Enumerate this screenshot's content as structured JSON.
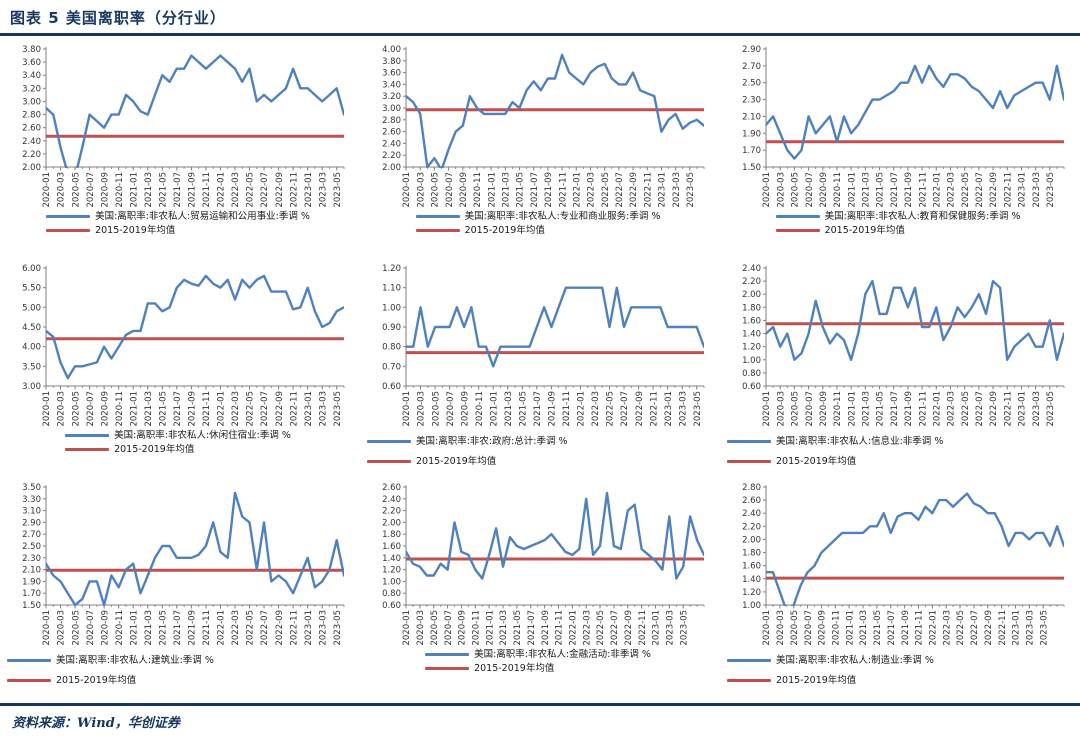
{
  "page": {
    "title": "图表 5  美国离职率（分行业）",
    "source": "资料来源：Wind，华创证券"
  },
  "colors": {
    "navy": "#17375E",
    "series_blue": "#4F81BD",
    "avg_red": "#C0504D",
    "axis": "#808080",
    "tick_text": "#333333"
  },
  "chart_data": [
    {
      "type": "line",
      "series_label": "美国:离职率:非农私人:贸易运输和公用事业:季调 %",
      "avg_label": "2015-2019年均值",
      "avg_value": 2.47,
      "y_min": 2.0,
      "y_max": 3.8,
      "y_ticks": [
        "3.80",
        "3.60",
        "3.40",
        "3.20",
        "3.00",
        "2.80",
        "2.60",
        "2.40",
        "2.20",
        "2.00"
      ],
      "x_ticks": [
        "2020-01",
        "2020-03",
        "2020-05",
        "2020-07",
        "2020-09",
        "2020-11",
        "2021-01",
        "2021-03",
        "2021-05",
        "2021-07",
        "2021-09",
        "2021-11",
        "2022-01",
        "2022-03",
        "2022-05",
        "2022-07",
        "2022-09",
        "2022-11",
        "2023-01",
        "2023-03",
        "2023-05"
      ],
      "legend_layout": "stacked",
      "values": [
        2.9,
        2.8,
        2.3,
        1.9,
        1.85,
        2.3,
        2.8,
        2.7,
        2.6,
        2.8,
        2.8,
        3.1,
        3.0,
        2.85,
        2.8,
        3.1,
        3.4,
        3.3,
        3.5,
        3.5,
        3.7,
        3.6,
        3.5,
        3.6,
        3.7,
        3.6,
        3.5,
        3.3,
        3.5,
        3.0,
        3.1,
        3.0,
        3.1,
        3.2,
        3.5,
        3.2,
        3.2,
        3.1,
        3.0,
        3.1,
        3.2,
        2.8
      ]
    },
    {
      "type": "line",
      "series_label": "美国:离职率:非农私人:专业和商业服务:季调 %",
      "avg_label": "2015-2019年均值",
      "avg_value": 2.97,
      "y_min": 2.0,
      "y_max": 4.0,
      "y_ticks": [
        "4.00",
        "3.80",
        "3.60",
        "3.40",
        "3.20",
        "3.00",
        "2.80",
        "2.60",
        "2.40",
        "2.20",
        "2.00"
      ],
      "x_ticks": [
        "2020-01",
        "2020-03",
        "2020-05",
        "2020-07",
        "2020-09",
        "2020-11",
        "2021-01",
        "2021-03",
        "2021-05",
        "2021-07",
        "2021-09",
        "2021-11",
        "2022-01",
        "2022-03",
        "2022-05",
        "2022-07",
        "2022-09",
        "2022-11",
        "2023-01",
        "2023-03",
        "2023-05"
      ],
      "legend_layout": "stacked",
      "values": [
        3.2,
        3.1,
        2.9,
        2.0,
        2.15,
        1.95,
        2.3,
        2.6,
        2.7,
        3.2,
        3.0,
        2.9,
        2.9,
        2.9,
        2.9,
        3.1,
        3.0,
        3.3,
        3.45,
        3.3,
        3.5,
        3.5,
        3.9,
        3.6,
        3.5,
        3.4,
        3.6,
        3.7,
        3.75,
        3.5,
        3.4,
        3.4,
        3.6,
        3.3,
        3.25,
        3.2,
        2.6,
        2.8,
        2.9,
        2.65,
        2.75,
        2.8,
        2.7
      ]
    },
    {
      "type": "line",
      "series_label": "美国:离职率:非农私人:教育和保健服务:季调 %",
      "avg_label": "2015-2019年均值",
      "avg_value": 1.8,
      "y_min": 1.5,
      "y_max": 2.9,
      "y_ticks": [
        "2.90",
        "2.70",
        "2.50",
        "2.30",
        "2.10",
        "1.90",
        "1.70",
        "1.50"
      ],
      "x_ticks": [
        "2020-01",
        "2020-03",
        "2020-05",
        "2020-07",
        "2020-09",
        "2020-11",
        "2021-01",
        "2021-03",
        "2021-05",
        "2021-07",
        "2021-09",
        "2021-11",
        "2022-01",
        "2022-03",
        "2022-05",
        "2022-07",
        "2022-09",
        "2022-11",
        "2023-01",
        "2023-03",
        "2023-05"
      ],
      "legend_layout": "stacked",
      "values": [
        2.0,
        2.1,
        1.9,
        1.7,
        1.6,
        1.7,
        2.1,
        1.9,
        2.0,
        2.1,
        1.8,
        2.1,
        1.9,
        2.0,
        2.15,
        2.3,
        2.3,
        2.35,
        2.4,
        2.5,
        2.5,
        2.7,
        2.5,
        2.7,
        2.55,
        2.45,
        2.6,
        2.6,
        2.55,
        2.45,
        2.4,
        2.3,
        2.2,
        2.4,
        2.2,
        2.35,
        2.4,
        2.45,
        2.5,
        2.5,
        2.3,
        2.7,
        2.3
      ]
    },
    {
      "type": "line",
      "series_label": "美国:离职率:非农私人:休闲住宿业:季调 %",
      "avg_label": "2015-2019年均值",
      "avg_value": 4.2,
      "y_min": 3.0,
      "y_max": 6.0,
      "y_ticks": [
        "6.00",
        "5.50",
        "5.00",
        "4.50",
        "4.00",
        "3.50",
        "3.00"
      ],
      "x_ticks": [
        "2020-01",
        "2020-03",
        "2020-05",
        "2020-07",
        "2020-09",
        "2020-11",
        "2021-01",
        "2021-03",
        "2021-05",
        "2021-07",
        "2021-09",
        "2021-11",
        "2022-01",
        "2022-03",
        "2022-05",
        "2022-07",
        "2022-09",
        "2022-11",
        "2023-01",
        "2023-03",
        "2023-05"
      ],
      "legend_layout": "stacked",
      "values": [
        4.4,
        4.25,
        3.6,
        3.2,
        3.5,
        3.5,
        3.55,
        3.6,
        4.0,
        3.7,
        4.0,
        4.3,
        4.4,
        4.4,
        5.1,
        5.1,
        4.9,
        5.0,
        5.5,
        5.7,
        5.6,
        5.55,
        5.8,
        5.6,
        5.5,
        5.7,
        5.2,
        5.7,
        5.5,
        5.7,
        5.8,
        5.4,
        5.4,
        5.4,
        4.95,
        5.0,
        5.5,
        4.9,
        4.5,
        4.6,
        4.9,
        5.0
      ]
    },
    {
      "type": "line",
      "series_label": "美国:离职率:非农:政府:总计:季调 %",
      "avg_label": "2015-2019年均值",
      "avg_value": 0.77,
      "y_min": 0.6,
      "y_max": 1.2,
      "y_ticks": [
        "1.20",
        "1.10",
        "1.00",
        "0.90",
        "0.80",
        "0.70",
        "0.60"
      ],
      "x_ticks": [
        "2020-01",
        "2020-03",
        "2020-05",
        "2020-07",
        "2020-09",
        "2020-11",
        "2021-01",
        "2021-03",
        "2021-05",
        "2021-07",
        "2021-09",
        "2021-11",
        "2022-01",
        "2022-03",
        "2022-05",
        "2022-07",
        "2022-09",
        "2022-11",
        "2023-01",
        "2023-03",
        "2023-05"
      ],
      "legend_layout": "inline",
      "values": [
        0.8,
        0.8,
        1.0,
        0.8,
        0.9,
        0.9,
        0.9,
        1.0,
        0.9,
        1.0,
        0.8,
        0.8,
        0.7,
        0.8,
        0.8,
        0.8,
        0.8,
        0.8,
        0.9,
        1.0,
        0.9,
        1.0,
        1.1,
        1.1,
        1.1,
        1.1,
        1.1,
        1.1,
        0.9,
        1.1,
        0.9,
        1.0,
        1.0,
        1.0,
        1.0,
        1.0,
        0.9,
        0.9,
        0.9,
        0.9,
        0.9,
        0.8
      ]
    },
    {
      "type": "line",
      "series_label": "美国:离职率:非农私人:信息业:非季调 %",
      "avg_label": "2015-2019年均值",
      "avg_value": 1.55,
      "y_min": 0.6,
      "y_max": 2.4,
      "y_ticks": [
        "2.40",
        "2.20",
        "2.00",
        "1.80",
        "1.60",
        "1.40",
        "1.20",
        "1.00",
        "0.80",
        "0.60"
      ],
      "x_ticks": [
        "2020-01",
        "2020-03",
        "2020-05",
        "2020-07",
        "2020-09",
        "2020-11",
        "2021-01",
        "2021-03",
        "2021-05",
        "2021-07",
        "2021-09",
        "2021-11",
        "2022-01",
        "2022-03",
        "2022-05",
        "2022-07",
        "2022-09",
        "2022-11",
        "2023-01",
        "2023-03",
        "2023-05"
      ],
      "legend_layout": "inline",
      "values": [
        1.4,
        1.5,
        1.2,
        1.4,
        1.0,
        1.1,
        1.4,
        1.9,
        1.5,
        1.25,
        1.4,
        1.3,
        1.0,
        1.4,
        2.0,
        2.2,
        1.7,
        1.7,
        2.1,
        2.1,
        1.8,
        2.1,
        1.5,
        1.5,
        1.8,
        1.3,
        1.5,
        1.8,
        1.65,
        1.8,
        2.0,
        1.7,
        2.2,
        2.1,
        1.0,
        1.2,
        1.3,
        1.4,
        1.2,
        1.2,
        1.6,
        1.0,
        1.4
      ]
    },
    {
      "type": "line",
      "series_label": "美国:离职率:非农私人:建筑业:季调 %",
      "avg_label": "2015-2019年均值",
      "avg_value": 2.09,
      "y_min": 1.5,
      "y_max": 3.5,
      "y_ticks": [
        "3.50",
        "3.30",
        "3.10",
        "2.90",
        "2.70",
        "2.50",
        "2.30",
        "2.10",
        "1.90",
        "1.70",
        "1.50"
      ],
      "x_ticks": [
        "2020-01",
        "2020-03",
        "2020-05",
        "2020-07",
        "2020-09",
        "2020-11",
        "2021-01",
        "2021-03",
        "2021-05",
        "2021-07",
        "2021-09",
        "2021-11",
        "2022-01",
        "2022-03",
        "2022-05",
        "2022-07",
        "2022-09",
        "2022-11",
        "2023-01",
        "2023-03",
        "2023-05"
      ],
      "legend_layout": "inline",
      "values": [
        2.2,
        2.0,
        1.9,
        1.7,
        1.5,
        1.6,
        1.9,
        1.9,
        1.5,
        2.0,
        1.8,
        2.1,
        2.2,
        1.7,
        2.0,
        2.3,
        2.5,
        2.5,
        2.3,
        2.3,
        2.3,
        2.35,
        2.5,
        2.9,
        2.4,
        2.3,
        3.4,
        3.0,
        2.9,
        2.1,
        2.9,
        1.9,
        2.0,
        1.9,
        1.7,
        2.0,
        2.3,
        1.8,
        1.9,
        2.1,
        2.6,
        2.0
      ]
    },
    {
      "type": "line",
      "series_label": "美国:离职率:非农私人:金融活动:非季调 %",
      "avg_label": "2015-2019年均值",
      "avg_value": 1.38,
      "y_min": 0.6,
      "y_max": 2.6,
      "y_ticks": [
        "2.60",
        "2.40",
        "2.20",
        "2.00",
        "1.80",
        "1.60",
        "1.40",
        "1.20",
        "1.00",
        "0.80",
        "0.60"
      ],
      "x_ticks": [
        "2020-01",
        "2020-03",
        "2020-05",
        "2020-07",
        "2020-09",
        "2020-11",
        "2021-01",
        "2021-03",
        "2021-05",
        "2021-07",
        "2021-09",
        "2021-11",
        "2022-01",
        "2022-03",
        "2022-05",
        "2022-07",
        "2022-09",
        "2022-11",
        "2023-01",
        "2023-03",
        "2023-05"
      ],
      "legend_layout": "stacked",
      "values": [
        1.5,
        1.3,
        1.25,
        1.1,
        1.1,
        1.3,
        1.2,
        2.0,
        1.5,
        1.45,
        1.2,
        1.05,
        1.45,
        1.9,
        1.25,
        1.75,
        1.6,
        1.55,
        1.6,
        1.65,
        1.7,
        1.8,
        1.65,
        1.5,
        1.45,
        1.55,
        2.4,
        1.45,
        1.6,
        2.5,
        1.6,
        1.55,
        2.2,
        2.3,
        1.55,
        1.45,
        1.35,
        1.2,
        2.1,
        1.05,
        1.25,
        2.1,
        1.7,
        1.45
      ]
    },
    {
      "type": "line",
      "series_label": "美国:离职率:非农私人:制造业:季调 %",
      "avg_label": "2015-2019年均值",
      "avg_value": 1.41,
      "y_min": 1.0,
      "y_max": 2.8,
      "y_ticks": [
        "2.80",
        "2.60",
        "2.40",
        "2.20",
        "2.00",
        "1.80",
        "1.60",
        "1.40",
        "1.20",
        "1.00"
      ],
      "x_ticks": [
        "2020-01",
        "2020-03",
        "2020-05",
        "2020-07",
        "2020-09",
        "2020-11",
        "2021-01",
        "2021-03",
        "2021-05",
        "2021-07",
        "2021-09",
        "2021-11",
        "2022-01",
        "2022-03",
        "2022-05",
        "2022-07",
        "2022-09",
        "2022-11",
        "2023-01",
        "2023-03",
        "2023-05"
      ],
      "legend_layout": "inline",
      "values": [
        1.5,
        1.5,
        1.2,
        0.9,
        1.0,
        1.3,
        1.5,
        1.6,
        1.8,
        1.9,
        2.0,
        2.1,
        2.1,
        2.1,
        2.1,
        2.2,
        2.2,
        2.4,
        2.1,
        2.35,
        2.4,
        2.4,
        2.3,
        2.5,
        2.4,
        2.6,
        2.6,
        2.5,
        2.6,
        2.7,
        2.55,
        2.5,
        2.4,
        2.4,
        2.2,
        1.9,
        2.1,
        2.1,
        2.0,
        2.1,
        2.1,
        1.9,
        2.2,
        1.9
      ]
    }
  ]
}
